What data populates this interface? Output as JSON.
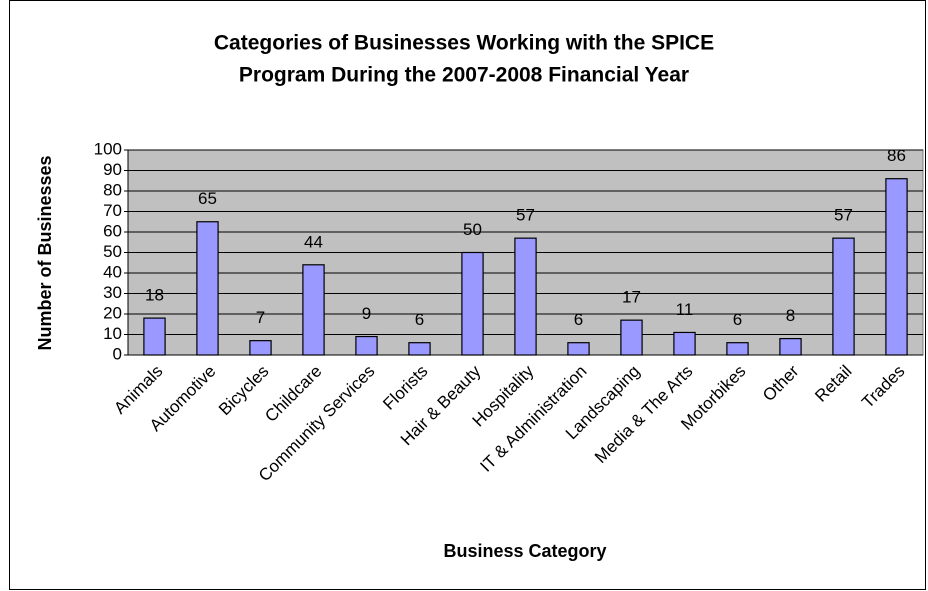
{
  "chart_data": {
    "type": "bar",
    "title": [
      "Categories of Businesses Working with the SPICE",
      "Program During the 2007-2008 Financial Year"
    ],
    "x_label": "Business Category",
    "y_label": "Number of Businesses",
    "categories": [
      "Animals",
      "Automotive",
      "Bicycles",
      "Childcare",
      "Community Services",
      "Florists",
      "Hair & Beauty",
      "Hospitality",
      "IT & Administration",
      "Landscaping",
      "Media & The Arts",
      "Motorbikes",
      "Other",
      "Retail",
      "Trades"
    ],
    "values": [
      18,
      65,
      7,
      44,
      9,
      6,
      50,
      57,
      6,
      17,
      11,
      6,
      8,
      57,
      86
    ],
    "color": "#9999ff",
    "ylim": [
      0,
      100
    ],
    "yticks": [
      0,
      10,
      20,
      30,
      40,
      50,
      60,
      70,
      80,
      90,
      100
    ],
    "grid": true
  }
}
